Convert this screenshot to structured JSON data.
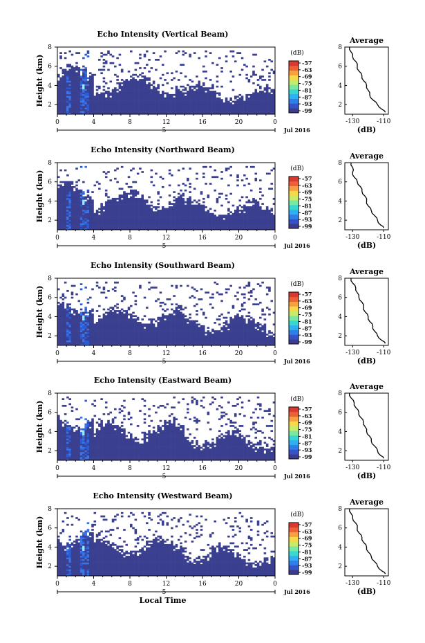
{
  "chart_data": [
    {
      "type": "heatmap",
      "title": "Echo Intensity (Vertical Beam)",
      "ylabel": "Height (km)",
      "yticks": [
        "2",
        "4",
        "6",
        "8"
      ],
      "xticks": [
        "0",
        "4",
        "8",
        "12",
        "16",
        "20",
        "0"
      ],
      "date_label": "5",
      "date_suffix": "Jul 2016",
      "ylim": [
        1,
        8
      ],
      "xlim": [
        0,
        24
      ],
      "colorbar": {
        "title": "(dB)",
        "ticks": [
          "-57",
          "-63",
          "-69",
          "-75",
          "-81",
          "-87",
          "-93",
          "-99"
        ],
        "range": [
          -99,
          -57
        ]
      },
      "average": {
        "title": "Average",
        "xlabel": "(dB)",
        "xticks": [
          "-130",
          "-110"
        ],
        "yticks": [
          "2",
          "4",
          "6",
          "8"
        ],
        "profile": [
          [
            -132,
            8
          ],
          [
            -131,
            7.5
          ],
          [
            -130,
            7
          ],
          [
            -128,
            6.5
          ],
          [
            -127,
            6
          ],
          [
            -126,
            5.5
          ],
          [
            -124,
            5
          ],
          [
            -123,
            4.5
          ],
          [
            -121,
            4
          ],
          [
            -120,
            3.5
          ],
          [
            -119,
            3
          ],
          [
            -117,
            2.5
          ],
          [
            -114,
            2
          ],
          [
            -111,
            1.5
          ],
          [
            -109,
            1.2
          ]
        ]
      }
    },
    {
      "type": "heatmap",
      "title": "Echo Intensity (Northward Beam)",
      "ylabel": "Height (km)",
      "yticks": [
        "2",
        "4",
        "6",
        "8"
      ],
      "xticks": [
        "0",
        "4",
        "8",
        "12",
        "16",
        "20",
        "0"
      ],
      "date_label": "5",
      "date_suffix": "Jul 2016",
      "ylim": [
        1,
        8
      ],
      "xlim": [
        0,
        24
      ],
      "colorbar": {
        "title": "(dB)",
        "ticks": [
          "-57",
          "-63",
          "-69",
          "-75",
          "-81",
          "-87",
          "-93",
          "-99"
        ],
        "range": [
          -99,
          -57
        ]
      },
      "average": {
        "title": "Average",
        "xlabel": "(dB)",
        "xticks": [
          "-130",
          "-110"
        ],
        "yticks": [
          "2",
          "4",
          "6",
          "8"
        ],
        "profile": [
          [
            -131,
            8
          ],
          [
            -130,
            7.5
          ],
          [
            -130,
            7
          ],
          [
            -129,
            6.5
          ],
          [
            -127,
            6
          ],
          [
            -125,
            5.5
          ],
          [
            -124,
            5
          ],
          [
            -122,
            4.5
          ],
          [
            -121,
            4
          ],
          [
            -120,
            3.5
          ],
          [
            -118,
            3
          ],
          [
            -116,
            2.5
          ],
          [
            -114,
            2
          ],
          [
            -112,
            1.5
          ],
          [
            -110,
            1.2
          ]
        ]
      }
    },
    {
      "type": "heatmap",
      "title": "Echo Intensity (Southward Beam)",
      "ylabel": "Height (km)",
      "yticks": [
        "2",
        "4",
        "6",
        "8"
      ],
      "xticks": [
        "0",
        "4",
        "8",
        "12",
        "16",
        "20",
        "0"
      ],
      "date_label": "5",
      "date_suffix": "Jul 2016",
      "ylim": [
        1,
        8
      ],
      "xlim": [
        0,
        24
      ],
      "colorbar": {
        "title": "(dB)",
        "ticks": [
          "-57",
          "-63",
          "-69",
          "-75",
          "-81",
          "-87",
          "-93",
          "-99"
        ],
        "range": [
          -99,
          -57
        ]
      },
      "average": {
        "title": "Average",
        "xlabel": "(dB)",
        "xticks": [
          "-130",
          "-110"
        ],
        "yticks": [
          "2",
          "4",
          "6",
          "8"
        ],
        "profile": [
          [
            -131,
            8
          ],
          [
            -130,
            7.5
          ],
          [
            -128,
            7
          ],
          [
            -127,
            6.5
          ],
          [
            -126,
            6
          ],
          [
            -124,
            5.5
          ],
          [
            -123,
            5
          ],
          [
            -122,
            4.5
          ],
          [
            -120,
            4
          ],
          [
            -119,
            3.5
          ],
          [
            -117,
            3
          ],
          [
            -116,
            2.5
          ],
          [
            -114,
            2
          ],
          [
            -111,
            1.5
          ],
          [
            -109,
            1.2
          ]
        ]
      }
    },
    {
      "type": "heatmap",
      "title": "Echo Intensity (Eastward Beam)",
      "ylabel": "Height (km)",
      "yticks": [
        "2",
        "4",
        "6",
        "8"
      ],
      "xticks": [
        "0",
        "4",
        "8",
        "12",
        "16",
        "20",
        "0"
      ],
      "date_label": "5",
      "date_suffix": "Jul 2016",
      "ylim": [
        1,
        8
      ],
      "xlim": [
        0,
        24
      ],
      "colorbar": {
        "title": "(dB)",
        "ticks": [
          "-57",
          "-63",
          "-69",
          "-75",
          "-81",
          "-87",
          "-93",
          "-99"
        ],
        "range": [
          -99,
          -57
        ]
      },
      "average": {
        "title": "Average",
        "xlabel": "(dB)",
        "xticks": [
          "-130",
          "-110"
        ],
        "yticks": [
          "2",
          "4",
          "6",
          "8"
        ],
        "profile": [
          [
            -132,
            8
          ],
          [
            -131,
            7.5
          ],
          [
            -129,
            7
          ],
          [
            -128,
            6.5
          ],
          [
            -126,
            6
          ],
          [
            -125,
            5.5
          ],
          [
            -123,
            5
          ],
          [
            -122,
            4.5
          ],
          [
            -121,
            4
          ],
          [
            -119,
            3.5
          ],
          [
            -118,
            3
          ],
          [
            -116,
            2.5
          ],
          [
            -114,
            2
          ],
          [
            -112,
            1.5
          ],
          [
            -110,
            1.2
          ]
        ]
      }
    },
    {
      "type": "heatmap",
      "title": "Echo Intensity (Westward Beam)",
      "ylabel": "Height (km)",
      "yticks": [
        "2",
        "4",
        "6",
        "8"
      ],
      "xticks": [
        "0",
        "4",
        "8",
        "12",
        "16",
        "20",
        "0"
      ],
      "date_label": "5",
      "date_suffix": "Jul 2016",
      "xlabel": "Local Time",
      "ylim": [
        1,
        8
      ],
      "xlim": [
        0,
        24
      ],
      "colorbar": {
        "title": "(dB)",
        "ticks": [
          "-57",
          "-63",
          "-69",
          "-75",
          "-81",
          "-87",
          "-93",
          "-99"
        ],
        "range": [
          -99,
          -57
        ]
      },
      "average": {
        "title": "Average",
        "xlabel": "(dB)",
        "xticks": [
          "-130",
          "-110"
        ],
        "yticks": [
          "2",
          "4",
          "6",
          "8"
        ],
        "profile": [
          [
            -132,
            8
          ],
          [
            -131,
            7.5
          ],
          [
            -130,
            7
          ],
          [
            -128,
            6.5
          ],
          [
            -127,
            6
          ],
          [
            -126,
            5.5
          ],
          [
            -124,
            5
          ],
          [
            -123,
            4.5
          ],
          [
            -121,
            4
          ],
          [
            -120,
            3.5
          ],
          [
            -118,
            3
          ],
          [
            -116,
            2.5
          ],
          [
            -114,
            2
          ],
          [
            -111,
            1.5
          ],
          [
            -109,
            1.2
          ]
        ]
      }
    }
  ],
  "colors": {
    "background_echo": "#3a3f8f",
    "strong_echo": [
      "#2a5cd8",
      "#4fa8ff",
      "#8ef0ff"
    ],
    "colormap": [
      "#3b3c8e",
      "#3553c7",
      "#2f7fe8",
      "#2fb0f0",
      "#38d8d0",
      "#7ae8a0",
      "#c8ec6a",
      "#f6d84a",
      "#f6a040",
      "#ee6038",
      "#d83a30"
    ]
  }
}
